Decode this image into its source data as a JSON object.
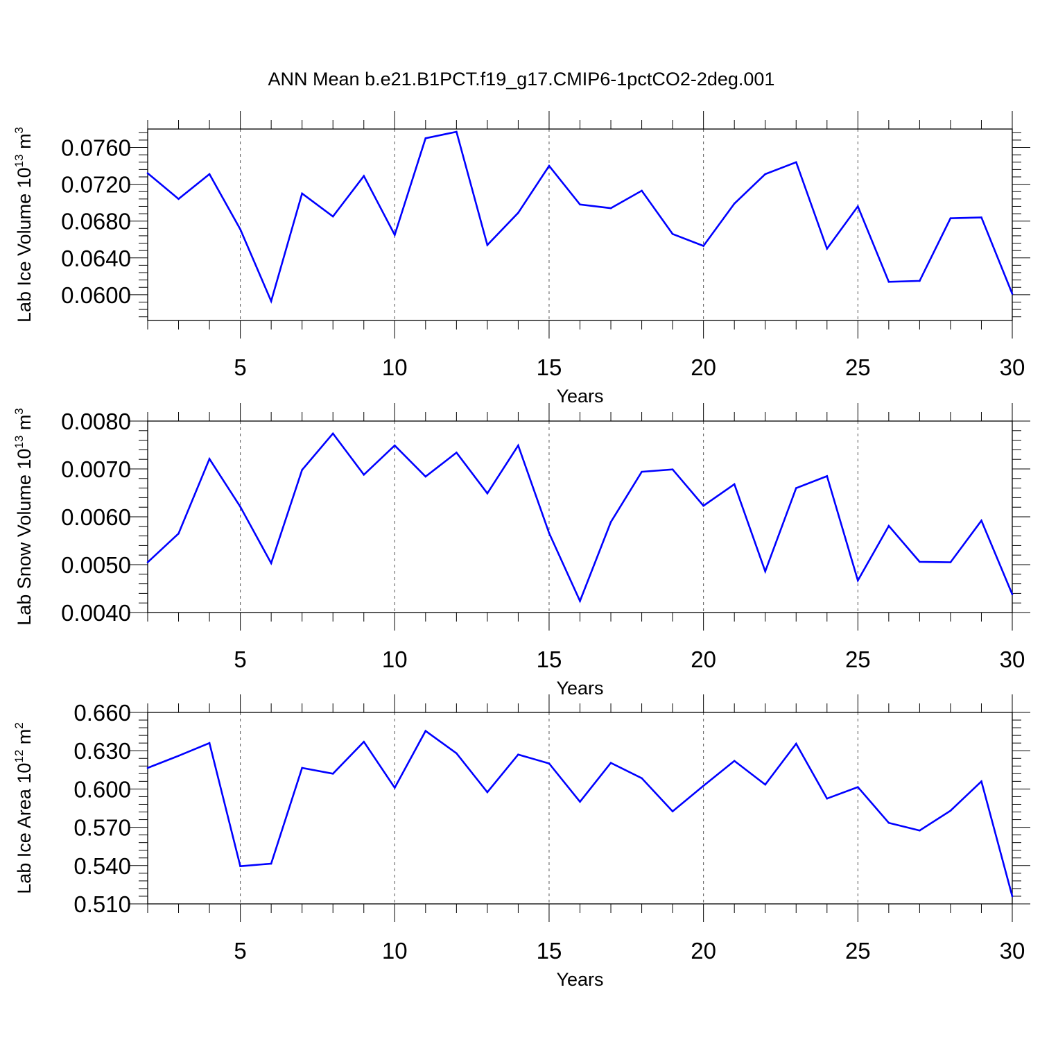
{
  "title": "ANN Mean b.e21.B1PCT.f19_g17.CMIP6-1pctCO2-2deg.001",
  "colors": {
    "line": "#0000ff",
    "axis": "#000000",
    "grid": "#555555"
  },
  "chart_data": [
    {
      "type": "line",
      "ylabel": "Lab Ice Volume 10",
      "ylabel_exp": "13",
      "ylabel_unit": " m",
      "ylabel_unit_exp": "3",
      "xlabel": "Years",
      "xlim": [
        2,
        30
      ],
      "ylim": [
        0.0572,
        0.078
      ],
      "xticks": [
        5,
        10,
        15,
        20,
        25,
        30
      ],
      "yticks": [
        0.06,
        0.064,
        0.068,
        0.072,
        0.076
      ],
      "ytick_labels": [
        "0.0600",
        "0.0640",
        "0.0680",
        "0.0720",
        "0.0760"
      ],
      "x": [
        2,
        3,
        4,
        5,
        6,
        7,
        8,
        9,
        10,
        11,
        12,
        13,
        14,
        15,
        16,
        17,
        18,
        19,
        20,
        21,
        22,
        23,
        24,
        25,
        26,
        27,
        28,
        29,
        30
      ],
      "values": [
        0.0732,
        0.0704,
        0.0731,
        0.0671,
        0.0593,
        0.071,
        0.0685,
        0.0729,
        0.0665,
        0.077,
        0.0777,
        0.0654,
        0.0689,
        0.074,
        0.0698,
        0.0694,
        0.0713,
        0.0666,
        0.0653,
        0.0699,
        0.0731,
        0.0744,
        0.065,
        0.0696,
        0.0614,
        0.0615,
        0.0683,
        0.0684,
        0.0601
      ]
    },
    {
      "type": "line",
      "ylabel": "Lab Snow Volume 10",
      "ylabel_exp": "13",
      "ylabel_unit": " m",
      "ylabel_unit_exp": "3",
      "xlabel": "Years",
      "xlim": [
        2,
        30
      ],
      "ylim": [
        0.004,
        0.008
      ],
      "xticks": [
        5,
        10,
        15,
        20,
        25,
        30
      ],
      "yticks": [
        0.004,
        0.005,
        0.006,
        0.007,
        0.008
      ],
      "ytick_labels": [
        "0.0040",
        "0.0050",
        "0.0060",
        "0.0070",
        "0.0080"
      ],
      "x": [
        2,
        3,
        4,
        5,
        6,
        7,
        8,
        9,
        10,
        11,
        12,
        13,
        14,
        15,
        16,
        17,
        18,
        19,
        20,
        21,
        22,
        23,
        24,
        25,
        26,
        27,
        28,
        29,
        30
      ],
      "values": [
        0.00505,
        0.00565,
        0.00721,
        0.00621,
        0.00503,
        0.00698,
        0.00774,
        0.00688,
        0.00749,
        0.00684,
        0.00734,
        0.00649,
        0.00749,
        0.00566,
        0.00424,
        0.00589,
        0.00694,
        0.00699,
        0.00623,
        0.00668,
        0.00486,
        0.0066,
        0.00685,
        0.00467,
        0.00581,
        0.00506,
        0.00505,
        0.00592,
        0.00438
      ]
    },
    {
      "type": "line",
      "ylabel": "Lab Ice Area 10",
      "ylabel_exp": "12",
      "ylabel_unit": " m",
      "ylabel_unit_exp": "2",
      "xlabel": "Years",
      "xlim": [
        2,
        30
      ],
      "ylim": [
        0.51,
        0.66
      ],
      "xticks": [
        5,
        10,
        15,
        20,
        25,
        30
      ],
      "yticks": [
        0.51,
        0.54,
        0.57,
        0.6,
        0.63,
        0.66
      ],
      "ytick_labels": [
        "0.510",
        "0.540",
        "0.570",
        "0.600",
        "0.630",
        "0.660"
      ],
      "x": [
        2,
        3,
        4,
        5,
        6,
        7,
        8,
        9,
        10,
        11,
        12,
        13,
        14,
        15,
        16,
        17,
        18,
        19,
        20,
        21,
        22,
        23,
        24,
        25,
        26,
        27,
        28,
        29,
        30
      ],
      "values": [
        0.6165,
        0.626,
        0.636,
        0.5395,
        0.5415,
        0.6165,
        0.612,
        0.637,
        0.601,
        0.6455,
        0.628,
        0.5975,
        0.627,
        0.62,
        0.59,
        0.6205,
        0.6085,
        0.5825,
        0.6025,
        0.622,
        0.6035,
        0.6355,
        0.5925,
        0.6015,
        0.5735,
        0.5675,
        0.583,
        0.606,
        0.516
      ]
    }
  ]
}
